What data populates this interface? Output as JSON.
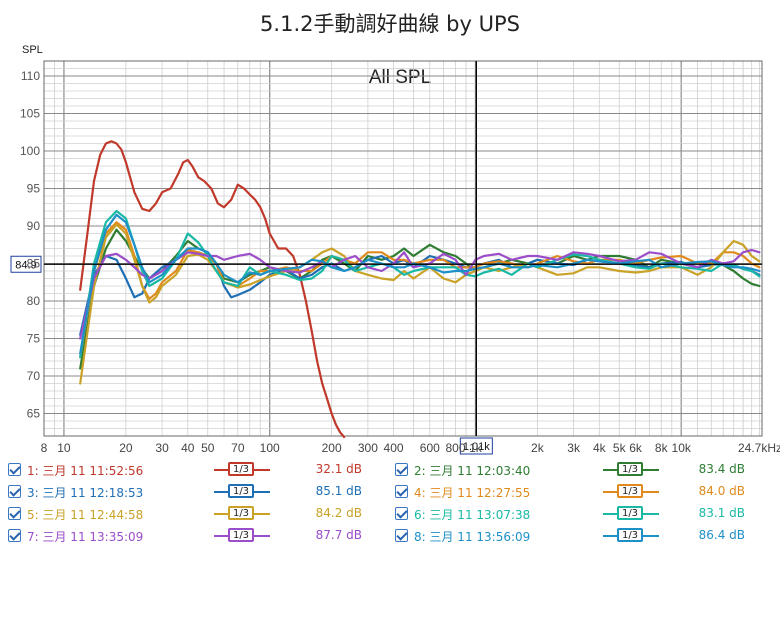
{
  "chart_data": {
    "type": "line",
    "title": "5.1.2手動調好曲線 by UPS",
    "subtitle": "All SPL",
    "ylabel": "SPL",
    "x_scale": "log",
    "xlim": [
      8,
      24700
    ],
    "ylim": [
      62,
      112
    ],
    "y_ticks": [
      "65",
      "70",
      "75",
      "80",
      "85",
      "90",
      "95",
      "100",
      "105",
      "110"
    ],
    "x_ticks": [
      "8",
      "10",
      "20",
      "30",
      "40",
      "50",
      "70",
      "100",
      "200",
      "300",
      "400",
      "600",
      "800",
      "1k",
      "2k",
      "3k",
      "4k",
      "5k",
      "6k",
      "8k",
      "10k",
      "24.7kHz"
    ],
    "cursor_y_label": "84.9",
    "cursor_x_label": "1.01k",
    "cursor": {
      "x": 1010,
      "y": 84.9
    },
    "grid": true,
    "colors": {
      "grid_major": "#8a8a8a",
      "grid_minor": "#d0d0d0",
      "cursor": "#000000",
      "cursor_label_border": "#1f3fa0"
    },
    "series": [
      {
        "name": "1: 三月 11 11:52:56",
        "value": "32.1 dB",
        "color": "#c0392b",
        "smoothing": "1/3",
        "x": [
          12,
          13,
          14,
          15,
          16,
          17,
          18,
          19,
          20,
          22,
          24,
          26,
          28,
          30,
          33,
          36,
          38,
          40,
          42,
          45,
          48,
          52,
          56,
          60,
          65,
          70,
          75,
          80,
          85,
          90,
          95,
          100,
          110,
          120,
          130,
          140,
          150,
          160,
          170,
          180,
          190,
          200,
          210,
          220,
          230
        ],
        "y": [
          81.5,
          89,
          96,
          99.5,
          101,
          101.3,
          101,
          100.2,
          98.5,
          94.5,
          92.3,
          92,
          93,
          94.5,
          95,
          97,
          98.5,
          98.8,
          98,
          96.5,
          96,
          95,
          93,
          92.5,
          93.5,
          95.5,
          95,
          94.2,
          93.5,
          92.5,
          91,
          89,
          87,
          87,
          86,
          83.5,
          80,
          76,
          72,
          69,
          67,
          65,
          63.5,
          62.5,
          61.5
        ]
      },
      {
        "name": "2: 三月 11 12:03:40",
        "value": "83.4 dB",
        "color": "#2e7d32",
        "smoothing": "1/3",
        "x": [
          12,
          14,
          16,
          18,
          20,
          23,
          26,
          30,
          35,
          40,
          45,
          50,
          55,
          60,
          70,
          80,
          90,
          100,
          120,
          140,
          160,
          180,
          200,
          230,
          260,
          300,
          350,
          400,
          450,
          500,
          600,
          700,
          800,
          900,
          1000,
          1100,
          1300,
          1500,
          1800,
          2000,
          2500,
          3000,
          3500,
          4000,
          5000,
          6000,
          7000,
          8000,
          10000,
          12000,
          14000,
          16000,
          18000,
          20000,
          22000,
          24000
        ],
        "y": [
          71,
          82,
          87,
          89.5,
          88,
          85,
          83,
          84,
          86,
          88,
          87,
          86.5,
          85,
          83,
          82.5,
          83.5,
          84,
          84.5,
          84,
          83,
          84,
          85.5,
          86,
          85,
          84,
          86,
          85.5,
          86,
          87,
          86,
          87.5,
          86.5,
          86,
          85,
          84,
          84.5,
          85,
          85.5,
          85,
          85.5,
          85,
          86,
          85.5,
          86,
          86,
          85.5,
          84.5,
          85.5,
          85,
          84.5,
          85,
          84.8,
          84,
          83,
          82.3,
          82
        ]
      },
      {
        "name": "3: 三月 11 12:18:53",
        "value": "85.1 dB",
        "color": "#1f6fb5",
        "smoothing": "1/3",
        "x": [
          12,
          14,
          16,
          18,
          20,
          22,
          24,
          26,
          30,
          35,
          40,
          45,
          50,
          55,
          60,
          65,
          70,
          80,
          90,
          100,
          120,
          140,
          160,
          180,
          200,
          230,
          260,
          300,
          350,
          400,
          450,
          500,
          600,
          700,
          800,
          900,
          1000,
          1100,
          1300,
          1500,
          1800,
          2000,
          2500,
          3000,
          3500,
          4000,
          5000,
          6000,
          7000,
          8000,
          10000,
          12000,
          14000,
          16000,
          18000,
          20000,
          22000,
          24000
        ],
        "y": [
          75.5,
          83.5,
          86,
          85.5,
          83,
          80.5,
          81,
          83,
          84.5,
          85.5,
          86.5,
          86.5,
          86,
          85,
          82,
          80.5,
          80.8,
          81.5,
          82.5,
          83.5,
          84.2,
          83,
          83.5,
          84.5,
          85,
          84,
          84.5,
          85.5,
          86,
          85,
          85.5,
          84.5,
          86,
          85.5,
          85,
          84.5,
          84.5,
          85,
          85.5,
          84.5,
          85,
          85.5,
          85,
          84.8,
          85.5,
          85.3,
          85,
          84.8,
          84.5,
          85,
          85.2,
          84.5,
          84.8,
          85,
          84.8,
          84.3,
          84,
          83.5
        ]
      },
      {
        "name": "4: 三月 11 12:27:55",
        "value": "84.0 dB",
        "color": "#e08a1e",
        "smoothing": "1/3",
        "x": [
          12,
          14,
          16,
          18,
          20,
          22,
          24,
          26,
          28,
          30,
          35,
          40,
          45,
          50,
          55,
          60,
          70,
          80,
          90,
          100,
          120,
          140,
          160,
          180,
          200,
          230,
          260,
          300,
          350,
          400,
          450,
          500,
          600,
          700,
          800,
          900,
          1000,
          1100,
          1300,
          1500,
          1800,
          2000,
          2500,
          3000,
          3500,
          4000,
          5000,
          6000,
          7000,
          8000,
          10000,
          12000,
          14000,
          16000,
          18000,
          20000,
          22000,
          24000
        ],
        "y": [
          72.5,
          84,
          89,
          90.5,
          89.5,
          86,
          82,
          80.3,
          81,
          82.5,
          84,
          86.8,
          86.5,
          86,
          85,
          82.5,
          82,
          83,
          84,
          84,
          84.5,
          84,
          84,
          85,
          86,
          85.5,
          85,
          86.5,
          86.5,
          85.5,
          85.5,
          85,
          85.5,
          85.5,
          84.5,
          84.5,
          84.5,
          85,
          85.3,
          85,
          84.5,
          85,
          86,
          85.3,
          85,
          85.5,
          85.5,
          85,
          85.5,
          85.8,
          86,
          85,
          85,
          86.5,
          86.5,
          86,
          85,
          84.5
        ]
      },
      {
        "name": "5: 三月 11 12:44:58",
        "value": "84.2 dB",
        "color": "#c9a227",
        "smoothing": "1/3",
        "x": [
          12,
          14,
          16,
          18,
          20,
          22,
          24,
          26,
          28,
          30,
          35,
          40,
          45,
          50,
          55,
          60,
          70,
          80,
          90,
          100,
          120,
          140,
          160,
          180,
          200,
          230,
          260,
          300,
          350,
          400,
          450,
          500,
          600,
          700,
          800,
          900,
          1000,
          1100,
          1300,
          1500,
          1800,
          2000,
          2500,
          3000,
          3500,
          4000,
          5000,
          6000,
          7000,
          8000,
          10000,
          12000,
          14000,
          16000,
          18000,
          20000,
          22000,
          24000
        ],
        "y": [
          69,
          82,
          88.5,
          90.2,
          89,
          85.5,
          82,
          79.8,
          80.5,
          82,
          83.5,
          86,
          86.2,
          85.5,
          84,
          82.5,
          81.8,
          82.2,
          82.8,
          83.3,
          84,
          84.5,
          85.5,
          86.5,
          87,
          86,
          84,
          83.5,
          83,
          82.8,
          84,
          83,
          84.5,
          83,
          82.5,
          83.5,
          84,
          84.5,
          84,
          84.5,
          85,
          84.5,
          83.5,
          83.7,
          84.5,
          84.5,
          84,
          83.8,
          84,
          84.5,
          84.5,
          83.5,
          84.5,
          86.5,
          88,
          87.5,
          86,
          85.3
        ]
      },
      {
        "name": "6: 三月 11 13:07:38",
        "value": "83.1 dB",
        "color": "#19b9a6",
        "smoothing": "1/3",
        "x": [
          12,
          14,
          16,
          18,
          20,
          22,
          24,
          26,
          30,
          35,
          40,
          45,
          50,
          55,
          60,
          70,
          80,
          90,
          100,
          120,
          140,
          160,
          180,
          200,
          230,
          260,
          300,
          350,
          400,
          450,
          500,
          600,
          700,
          800,
          900,
          1000,
          1100,
          1300,
          1500,
          1800,
          2000,
          2500,
          3000,
          3500,
          4000,
          5000,
          6000,
          7000,
          8000,
          10000,
          12000,
          14000,
          16000,
          18000,
          20000,
          22000,
          24000
        ],
        "y": [
          72.5,
          85,
          90.5,
          92,
          91,
          87.5,
          84,
          82,
          83,
          85.5,
          89,
          87.8,
          86,
          84,
          82.5,
          82,
          84.5,
          83.5,
          84,
          83.5,
          82.8,
          83,
          84,
          86,
          85.5,
          84,
          84.5,
          85,
          84.5,
          83.5,
          84,
          84.5,
          84.5,
          84.5,
          83.5,
          83.3,
          83.8,
          84.3,
          83.5,
          85,
          84.5,
          85.5,
          86.2,
          86,
          85.5,
          85,
          84.5,
          84.3,
          85,
          84.5,
          84.3,
          84,
          85,
          84.8,
          84.3,
          84,
          83.3
        ]
      },
      {
        "name": "7: 三月 11 13:35:09",
        "value": "87.7 dB",
        "color": "#9b4dca",
        "smoothing": "1/3",
        "x": [
          12,
          14,
          16,
          18,
          20,
          22,
          24,
          26,
          30,
          35,
          40,
          45,
          50,
          55,
          60,
          70,
          80,
          90,
          100,
          120,
          140,
          160,
          180,
          200,
          230,
          260,
          300,
          350,
          400,
          450,
          500,
          600,
          700,
          800,
          900,
          1000,
          1100,
          1300,
          1500,
          1800,
          2000,
          2500,
          3000,
          3500,
          4000,
          5000,
          6000,
          7000,
          8000,
          10000,
          12000,
          14000,
          16000,
          18000,
          20000,
          22000,
          24000
        ],
        "y": [
          75,
          83,
          86,
          86.3,
          85.5,
          84.5,
          83.5,
          83,
          84,
          85.5,
          86.5,
          86.3,
          86,
          86,
          85.5,
          86,
          86.3,
          85.5,
          84.5,
          84,
          83.8,
          84.5,
          85.3,
          84.5,
          85.5,
          86,
          84.5,
          84,
          85,
          86.5,
          84.5,
          85,
          86.3,
          85.5,
          83.5,
          85.5,
          86,
          86.3,
          85.5,
          86,
          86,
          85.5,
          86.5,
          86.3,
          86,
          85.3,
          85.5,
          86.5,
          86.3,
          85,
          84.5,
          85.5,
          85,
          85.3,
          86.5,
          86.8,
          86.5
        ]
      },
      {
        "name": "8: 三月 11 13:56:09",
        "value": "86.4 dB",
        "color": "#1e90c8",
        "smoothing": "1/3",
        "x": [
          12,
          14,
          16,
          18,
          20,
          22,
          24,
          26,
          30,
          35,
          40,
          45,
          50,
          55,
          60,
          70,
          80,
          90,
          100,
          120,
          140,
          160,
          180,
          200,
          230,
          260,
          300,
          350,
          400,
          450,
          500,
          600,
          700,
          800,
          900,
          1000,
          1100,
          1300,
          1500,
          1800,
          2000,
          2500,
          3000,
          3500,
          4000,
          5000,
          6000,
          7000,
          8000,
          10000,
          12000,
          14000,
          16000,
          18000,
          20000,
          22000,
          24000
        ],
        "y": [
          73,
          84,
          89.5,
          91.5,
          90.5,
          87.5,
          84.5,
          82.5,
          83.5,
          85.5,
          87,
          87,
          86.5,
          85,
          83.5,
          82.5,
          83.8,
          83.5,
          84,
          84.3,
          84.5,
          85.5,
          85.3,
          84.5,
          84,
          84.5,
          85.5,
          85,
          84.5,
          84.5,
          85,
          84.5,
          83.8,
          84,
          84,
          84.3,
          84.5,
          85,
          84.5,
          84.5,
          84.8,
          84.5,
          85,
          85.5,
          85.3,
          85,
          85.3,
          85.5,
          84.5,
          85,
          85.2,
          85.3,
          84.8,
          84.5,
          84.5,
          84.3,
          84
        ]
      }
    ]
  }
}
